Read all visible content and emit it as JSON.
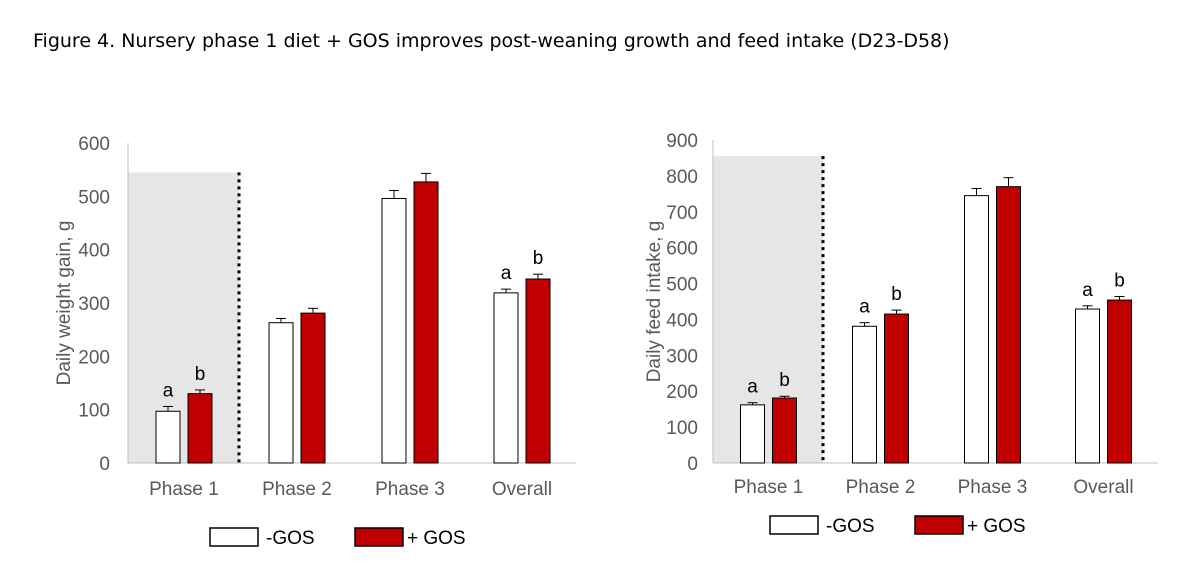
{
  "figure_title": "Figure 4. Nursery phase 1 diet + GOS improves post-weaning growth and feed intake (D23-D58)",
  "colors": {
    "gos": "#C00000",
    "gos_border": "#000000",
    "no_gos": "#FFFFFF",
    "shade": "#E6E6E6",
    "axis": "#BFBFBF",
    "text": "#595959"
  },
  "chart_data": [
    {
      "type": "bar",
      "categories": [
        "Phase 1",
        "Phase 2",
        "Phase 3",
        "Overall"
      ],
      "series": [
        {
          "name": "-GOS",
          "values": [
            97,
            263,
            496,
            319
          ],
          "errors": [
            9,
            8,
            15,
            7
          ],
          "labels": [
            "a",
            "",
            "",
            "a"
          ]
        },
        {
          "name": "+ GOS",
          "values": [
            130,
            281,
            527,
            345
          ],
          "errors": [
            7,
            9,
            16,
            9
          ],
          "labels": [
            "b",
            "",
            "",
            "b"
          ]
        }
      ],
      "ylabel": "Daily weight gain, g",
      "ylim": [
        0,
        600
      ],
      "yticks": [
        "0",
        "100",
        "200",
        "300",
        "400",
        "500",
        "600"
      ],
      "shaded_region": {
        "category": "Phase 1",
        "top": 545
      }
    },
    {
      "type": "bar",
      "categories": [
        "Phase 1",
        "Phase 2",
        "Phase 3",
        "Overall"
      ],
      "series": [
        {
          "name": "-GOS",
          "values": [
            162,
            381,
            745,
            429
          ],
          "errors": [
            6,
            10,
            20,
            9
          ],
          "labels": [
            "a",
            "a",
            "",
            "a"
          ]
        },
        {
          "name": "+ GOS",
          "values": [
            181,
            415,
            770,
            454
          ],
          "errors": [
            5,
            11,
            25,
            10
          ],
          "labels": [
            "b",
            "b",
            "",
            "b"
          ]
        }
      ],
      "ylabel": "Daily feed intake, g",
      "ylim": [
        0,
        900
      ],
      "yticks": [
        "0",
        "100",
        "200",
        "300",
        "400",
        "500",
        "600",
        "700",
        "800",
        "900"
      ],
      "shaded_region": {
        "category": "Phase 1",
        "top": 855
      }
    }
  ],
  "legends": [
    {
      "items": [
        "-GOS",
        "+ GOS"
      ]
    },
    {
      "items": [
        "-GOS",
        "+ GOS"
      ]
    }
  ]
}
